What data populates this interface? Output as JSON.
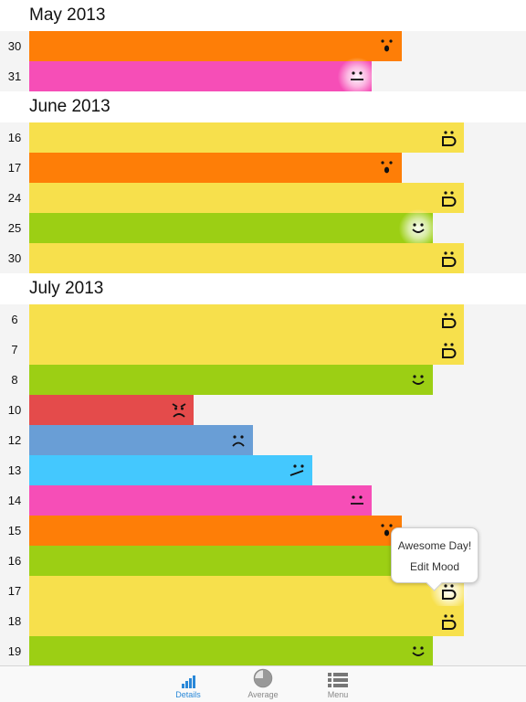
{
  "colors": {
    "awesome": "#f7e04c",
    "good": "#9ccf14",
    "shocked": "#fe7e07",
    "meh": "#f64eb7",
    "unsure": "#44c8fe",
    "sad": "#699ed6",
    "angry": "#e44b4b",
    "tab_active": "#2a88d8",
    "tab_inactive": "#888888"
  },
  "months": [
    {
      "title": "May 2013",
      "entries": [
        {
          "day": "30",
          "mood": "shocked",
          "level": 0.75,
          "face": "shocked-face-icon"
        },
        {
          "day": "31",
          "mood": "meh",
          "level": 0.69,
          "face": "neutral-face-icon",
          "glow": true
        }
      ]
    },
    {
      "title": "June 2013",
      "entries": [
        {
          "day": "16",
          "mood": "awesome",
          "level": 0.875,
          "face": "grin-face-icon"
        },
        {
          "day": "17",
          "mood": "shocked",
          "level": 0.75,
          "face": "shocked-face-icon"
        },
        {
          "day": "24",
          "mood": "awesome",
          "level": 0.875,
          "face": "grin-face-icon"
        },
        {
          "day": "25",
          "mood": "good",
          "level": 0.8125,
          "face": "smile-face-icon",
          "glow": true
        },
        {
          "day": "30",
          "mood": "awesome",
          "level": 0.875,
          "face": "grin-face-icon"
        }
      ]
    },
    {
      "title": "July 2013",
      "entries": [
        {
          "day": "6",
          "mood": "awesome",
          "level": 0.875,
          "face": "grin-face-icon"
        },
        {
          "day": "7",
          "mood": "awesome",
          "level": 0.875,
          "face": "grin-face-icon"
        },
        {
          "day": "8",
          "mood": "good",
          "level": 0.8125,
          "face": "smile-face-icon"
        },
        {
          "day": "10",
          "mood": "angry",
          "level": 0.33,
          "face": "angry-face-icon"
        },
        {
          "day": "12",
          "mood": "sad",
          "level": 0.45,
          "face": "sad-face-icon"
        },
        {
          "day": "13",
          "mood": "unsure",
          "level": 0.57,
          "face": "unsure-face-icon"
        },
        {
          "day": "14",
          "mood": "meh",
          "level": 0.69,
          "face": "neutral-face-icon"
        },
        {
          "day": "15",
          "mood": "shocked",
          "level": 0.75,
          "face": "shocked-face-icon"
        },
        {
          "day": "16",
          "mood": "good",
          "level": 0.8125,
          "face": "smile-face-icon"
        },
        {
          "day": "17",
          "mood": "awesome",
          "level": 0.875,
          "face": "grin-face-icon",
          "glow": true
        },
        {
          "day": "18",
          "mood": "awesome",
          "level": 0.875,
          "face": "grin-face-icon"
        },
        {
          "day": "19",
          "mood": "good",
          "level": 0.8125,
          "face": "smile-face-icon"
        }
      ]
    }
  ],
  "popover": {
    "item1": "Awesome Day!",
    "item2": "Edit Mood"
  },
  "tabs": [
    {
      "label": "Details",
      "icon": "bar-chart-icon",
      "active": true
    },
    {
      "label": "Average",
      "icon": "pie-chart-icon",
      "active": false
    },
    {
      "label": "Menu",
      "icon": "list-icon",
      "active": false
    }
  ]
}
